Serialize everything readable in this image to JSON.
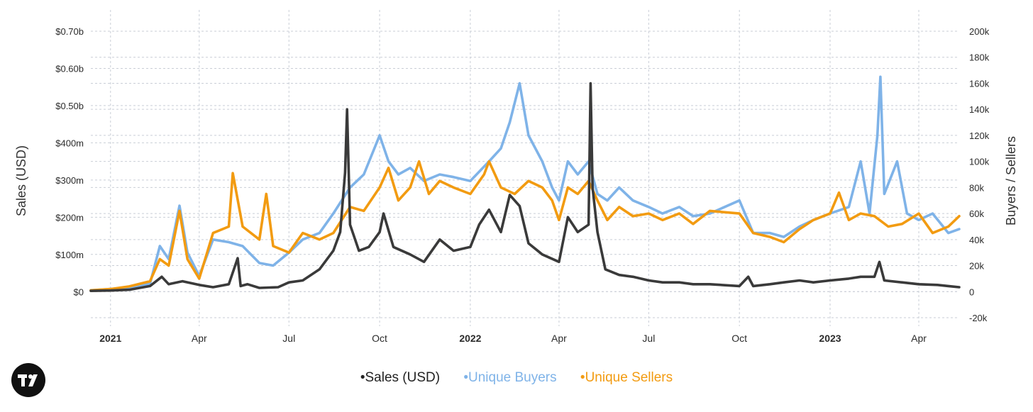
{
  "chart_data": {
    "type": "line",
    "x_axis": {
      "range": [
        "2020-12-12",
        "2023-05-12"
      ],
      "ticks": [
        {
          "date": "2021-01-01",
          "label": "2021",
          "bold": true
        },
        {
          "date": "2021-04-01",
          "label": "Apr",
          "bold": false
        },
        {
          "date": "2021-07-01",
          "label": "Jul",
          "bold": false
        },
        {
          "date": "2021-10-01",
          "label": "Oct",
          "bold": false
        },
        {
          "date": "2022-01-01",
          "label": "2022",
          "bold": true
        },
        {
          "date": "2022-04-01",
          "label": "Apr",
          "bold": false
        },
        {
          "date": "2022-07-01",
          "label": "Jul",
          "bold": false
        },
        {
          "date": "2022-10-01",
          "label": "Oct",
          "bold": false
        },
        {
          "date": "2023-01-01",
          "label": "2023",
          "bold": true
        },
        {
          "date": "2023-04-01",
          "label": "Apr",
          "bold": false
        }
      ]
    },
    "y_left": {
      "label": "Sales (USD)",
      "range": [
        -70000000,
        700000000
      ],
      "ticks": [
        {
          "value": 0,
          "label": "$0"
        },
        {
          "value": 100000000,
          "label": "$100m"
        },
        {
          "value": 200000000,
          "label": "$200m"
        },
        {
          "value": 300000000,
          "label": "$300m"
        },
        {
          "value": 400000000,
          "label": "$400m"
        },
        {
          "value": 500000000,
          "label": "$0.50b"
        },
        {
          "value": 600000000,
          "label": "$0.60b"
        },
        {
          "value": 700000000,
          "label": "$0.70b"
        }
      ]
    },
    "y_right": {
      "label": "Buyers / Sellers",
      "range": [
        -20000,
        200000
      ],
      "ticks": [
        {
          "value": -20000,
          "label": "-20k"
        },
        {
          "value": 0,
          "label": "0"
        },
        {
          "value": 20000,
          "label": "20k"
        },
        {
          "value": 40000,
          "label": "40k"
        },
        {
          "value": 60000,
          "label": "60k"
        },
        {
          "value": 80000,
          "label": "80k"
        },
        {
          "value": 100000,
          "label": "100k"
        },
        {
          "value": 120000,
          "label": "120k"
        },
        {
          "value": 140000,
          "label": "140k"
        },
        {
          "value": 160000,
          "label": "160k"
        },
        {
          "value": 180000,
          "label": "180k"
        },
        {
          "value": 200000,
          "label": "200k"
        }
      ]
    },
    "grid": true,
    "legend_position": "bottom-center",
    "series": [
      {
        "name": "Sales (USD)",
        "axis": "left",
        "color": "#3a3a3a",
        "points": [
          [
            "2020-12-12",
            2000000
          ],
          [
            "2021-01-01",
            3000000
          ],
          [
            "2021-01-20",
            5000000
          ],
          [
            "2021-02-10",
            15000000
          ],
          [
            "2021-02-22",
            40000000
          ],
          [
            "2021-03-01",
            20000000
          ],
          [
            "2021-03-15",
            28000000
          ],
          [
            "2021-04-01",
            18000000
          ],
          [
            "2021-04-15",
            12000000
          ],
          [
            "2021-05-01",
            20000000
          ],
          [
            "2021-05-10",
            90000000
          ],
          [
            "2021-05-13",
            15000000
          ],
          [
            "2021-05-20",
            20000000
          ],
          [
            "2021-06-01",
            10000000
          ],
          [
            "2021-06-20",
            12000000
          ],
          [
            "2021-07-01",
            25000000
          ],
          [
            "2021-07-15",
            30000000
          ],
          [
            "2021-08-01",
            60000000
          ],
          [
            "2021-08-15",
            110000000
          ],
          [
            "2021-08-22",
            160000000
          ],
          [
            "2021-08-27",
            320000000
          ],
          [
            "2021-08-29",
            490000000
          ],
          [
            "2021-09-01",
            180000000
          ],
          [
            "2021-09-10",
            110000000
          ],
          [
            "2021-09-20",
            120000000
          ],
          [
            "2021-10-01",
            160000000
          ],
          [
            "2021-10-05",
            210000000
          ],
          [
            "2021-10-15",
            120000000
          ],
          [
            "2021-11-01",
            100000000
          ],
          [
            "2021-11-15",
            80000000
          ],
          [
            "2021-12-01",
            140000000
          ],
          [
            "2021-12-15",
            110000000
          ],
          [
            "2022-01-01",
            120000000
          ],
          [
            "2022-01-10",
            180000000
          ],
          [
            "2022-01-20",
            220000000
          ],
          [
            "2022-02-01",
            160000000
          ],
          [
            "2022-02-10",
            260000000
          ],
          [
            "2022-02-20",
            230000000
          ],
          [
            "2022-03-01",
            130000000
          ],
          [
            "2022-03-15",
            100000000
          ],
          [
            "2022-04-01",
            80000000
          ],
          [
            "2022-04-10",
            200000000
          ],
          [
            "2022-04-20",
            160000000
          ],
          [
            "2022-05-01",
            180000000
          ],
          [
            "2022-05-03",
            560000000
          ],
          [
            "2022-05-05",
            280000000
          ],
          [
            "2022-05-10",
            160000000
          ],
          [
            "2022-05-18",
            60000000
          ],
          [
            "2022-06-01",
            45000000
          ],
          [
            "2022-06-15",
            40000000
          ],
          [
            "2022-07-01",
            30000000
          ],
          [
            "2022-07-15",
            25000000
          ],
          [
            "2022-08-01",
            25000000
          ],
          [
            "2022-08-15",
            20000000
          ],
          [
            "2022-09-01",
            20000000
          ],
          [
            "2022-10-01",
            15000000
          ],
          [
            "2022-10-10",
            40000000
          ],
          [
            "2022-10-15",
            15000000
          ],
          [
            "2022-11-01",
            20000000
          ],
          [
            "2022-11-15",
            25000000
          ],
          [
            "2022-12-01",
            30000000
          ],
          [
            "2022-12-15",
            25000000
          ],
          [
            "2023-01-01",
            30000000
          ],
          [
            "2023-01-20",
            35000000
          ],
          [
            "2023-02-01",
            40000000
          ],
          [
            "2023-02-15",
            40000000
          ],
          [
            "2023-02-20",
            80000000
          ],
          [
            "2023-02-25",
            30000000
          ],
          [
            "2023-03-15",
            25000000
          ],
          [
            "2023-04-01",
            20000000
          ],
          [
            "2023-04-20",
            18000000
          ],
          [
            "2023-05-01",
            15000000
          ],
          [
            "2023-05-12",
            12000000
          ]
        ]
      },
      {
        "name": "Unique Buyers",
        "axis": "right",
        "color": "#7fb3e8",
        "points": [
          [
            "2020-12-12",
            1000
          ],
          [
            "2021-01-01",
            2000
          ],
          [
            "2021-01-20",
            3000
          ],
          [
            "2021-02-10",
            6000
          ],
          [
            "2021-02-20",
            35000
          ],
          [
            "2021-03-01",
            25000
          ],
          [
            "2021-03-12",
            66000
          ],
          [
            "2021-03-20",
            30000
          ],
          [
            "2021-04-01",
            12000
          ],
          [
            "2021-04-15",
            40000
          ],
          [
            "2021-05-01",
            38000
          ],
          [
            "2021-05-15",
            35000
          ],
          [
            "2021-06-01",
            22000
          ],
          [
            "2021-06-15",
            20000
          ],
          [
            "2021-07-01",
            30000
          ],
          [
            "2021-07-15",
            40000
          ],
          [
            "2021-08-01",
            45000
          ],
          [
            "2021-08-15",
            60000
          ],
          [
            "2021-09-01",
            80000
          ],
          [
            "2021-09-15",
            90000
          ],
          [
            "2021-10-01",
            120000
          ],
          [
            "2021-10-10",
            100000
          ],
          [
            "2021-10-20",
            90000
          ],
          [
            "2021-11-01",
            95000
          ],
          [
            "2021-11-15",
            85000
          ],
          [
            "2021-12-01",
            90000
          ],
          [
            "2021-12-15",
            88000
          ],
          [
            "2022-01-01",
            85000
          ],
          [
            "2022-01-20",
            100000
          ],
          [
            "2022-02-01",
            110000
          ],
          [
            "2022-02-10",
            130000
          ],
          [
            "2022-02-20",
            160000
          ],
          [
            "2022-03-01",
            120000
          ],
          [
            "2022-03-15",
            100000
          ],
          [
            "2022-03-25",
            80000
          ],
          [
            "2022-04-01",
            70000
          ],
          [
            "2022-04-10",
            100000
          ],
          [
            "2022-04-20",
            90000
          ],
          [
            "2022-05-01",
            100000
          ],
          [
            "2022-05-10",
            75000
          ],
          [
            "2022-05-20",
            70000
          ],
          [
            "2022-06-01",
            80000
          ],
          [
            "2022-06-15",
            70000
          ],
          [
            "2022-07-01",
            65000
          ],
          [
            "2022-07-15",
            60000
          ],
          [
            "2022-08-01",
            65000
          ],
          [
            "2022-08-15",
            58000
          ],
          [
            "2022-09-01",
            60000
          ],
          [
            "2022-10-01",
            70000
          ],
          [
            "2022-10-15",
            45000
          ],
          [
            "2022-11-01",
            45000
          ],
          [
            "2022-11-15",
            42000
          ],
          [
            "2022-12-01",
            50000
          ],
          [
            "2022-12-15",
            55000
          ],
          [
            "2023-01-01",
            60000
          ],
          [
            "2023-01-20",
            65000
          ],
          [
            "2023-02-01",
            100000
          ],
          [
            "2023-02-10",
            60000
          ],
          [
            "2023-02-18",
            120000
          ],
          [
            "2023-02-21",
            165000
          ],
          [
            "2023-02-25",
            75000
          ],
          [
            "2023-03-10",
            100000
          ],
          [
            "2023-03-20",
            60000
          ],
          [
            "2023-04-01",
            55000
          ],
          [
            "2023-04-15",
            60000
          ],
          [
            "2023-05-01",
            45000
          ],
          [
            "2023-05-12",
            48000
          ]
        ]
      },
      {
        "name": "Unique Sellers",
        "axis": "right",
        "color": "#f29b11",
        "points": [
          [
            "2020-12-12",
            1000
          ],
          [
            "2021-01-01",
            2000
          ],
          [
            "2021-01-20",
            4000
          ],
          [
            "2021-02-10",
            8000
          ],
          [
            "2021-02-20",
            25000
          ],
          [
            "2021-03-01",
            20000
          ],
          [
            "2021-03-12",
            62000
          ],
          [
            "2021-03-20",
            25000
          ],
          [
            "2021-04-01",
            10000
          ],
          [
            "2021-04-15",
            45000
          ],
          [
            "2021-05-01",
            50000
          ],
          [
            "2021-05-05",
            91000
          ],
          [
            "2021-05-15",
            50000
          ],
          [
            "2021-06-01",
            40000
          ],
          [
            "2021-06-08",
            75000
          ],
          [
            "2021-06-15",
            35000
          ],
          [
            "2021-07-01",
            30000
          ],
          [
            "2021-07-15",
            45000
          ],
          [
            "2021-08-01",
            40000
          ],
          [
            "2021-08-15",
            45000
          ],
          [
            "2021-09-01",
            65000
          ],
          [
            "2021-09-15",
            62000
          ],
          [
            "2021-10-01",
            80000
          ],
          [
            "2021-10-10",
            95000
          ],
          [
            "2021-10-20",
            70000
          ],
          [
            "2021-11-01",
            80000
          ],
          [
            "2021-11-10",
            100000
          ],
          [
            "2021-11-20",
            75000
          ],
          [
            "2021-12-01",
            85000
          ],
          [
            "2021-12-15",
            80000
          ],
          [
            "2022-01-01",
            75000
          ],
          [
            "2022-01-15",
            90000
          ],
          [
            "2022-01-20",
            100000
          ],
          [
            "2022-02-01",
            80000
          ],
          [
            "2022-02-15",
            75000
          ],
          [
            "2022-03-01",
            85000
          ],
          [
            "2022-03-15",
            80000
          ],
          [
            "2022-03-25",
            70000
          ],
          [
            "2022-04-01",
            55000
          ],
          [
            "2022-04-10",
            80000
          ],
          [
            "2022-04-20",
            75000
          ],
          [
            "2022-05-01",
            85000
          ],
          [
            "2022-05-10",
            70000
          ],
          [
            "2022-05-20",
            55000
          ],
          [
            "2022-06-01",
            65000
          ],
          [
            "2022-06-15",
            58000
          ],
          [
            "2022-07-01",
            60000
          ],
          [
            "2022-07-15",
            55000
          ],
          [
            "2022-08-01",
            60000
          ],
          [
            "2022-08-15",
            52000
          ],
          [
            "2022-09-01",
            62000
          ],
          [
            "2022-10-01",
            60000
          ],
          [
            "2022-10-15",
            45000
          ],
          [
            "2022-11-01",
            42000
          ],
          [
            "2022-11-15",
            38000
          ],
          [
            "2022-12-01",
            48000
          ],
          [
            "2022-12-15",
            55000
          ],
          [
            "2023-01-01",
            60000
          ],
          [
            "2023-01-10",
            76000
          ],
          [
            "2023-01-20",
            55000
          ],
          [
            "2023-02-01",
            60000
          ],
          [
            "2023-02-15",
            58000
          ],
          [
            "2023-03-01",
            50000
          ],
          [
            "2023-03-15",
            52000
          ],
          [
            "2023-04-01",
            60000
          ],
          [
            "2023-04-15",
            45000
          ],
          [
            "2023-05-01",
            50000
          ],
          [
            "2023-05-12",
            58000
          ]
        ]
      }
    ]
  },
  "legend": [
    {
      "label": "•Sales (USD)",
      "color": "#222222"
    },
    {
      "label": "•Unique Buyers",
      "color": "#7fb3e8"
    },
    {
      "label": "•Unique Sellers",
      "color": "#f29b11"
    }
  ],
  "logo": {
    "name": "tradingview-logo",
    "glyph": "TV"
  }
}
